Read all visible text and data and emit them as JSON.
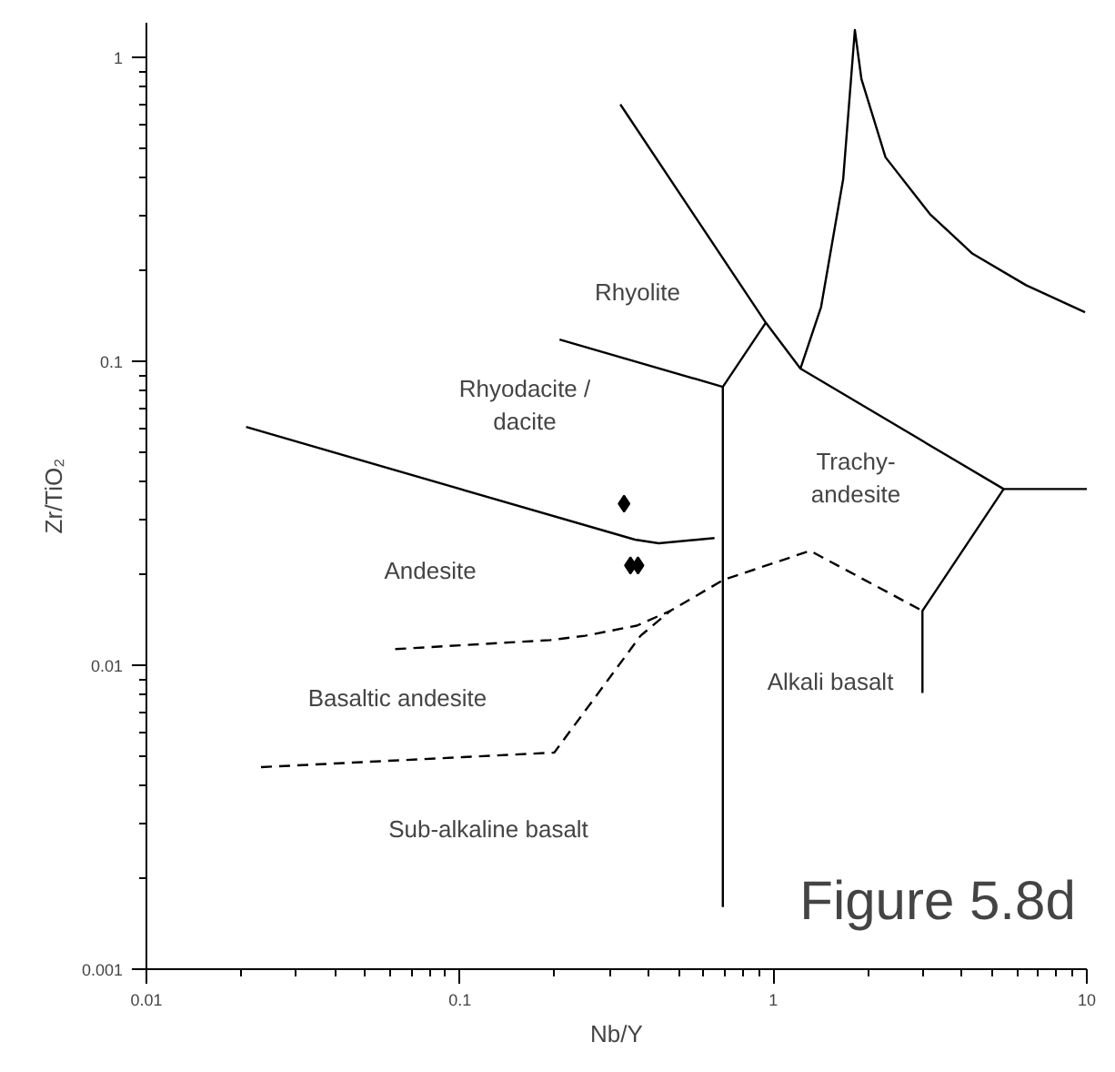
{
  "chart_data": {
    "type": "scatter",
    "xlabel": "Nb/Y",
    "ylabel": "Zr/TiO₂",
    "log": "xy",
    "grid": false,
    "xlim": [
      0.01,
      10
    ],
    "ylim": [
      0.001,
      1.3
    ],
    "xticks": [
      0.01,
      0.1,
      1,
      10
    ],
    "yticks": [
      0.001,
      0.01,
      0.1,
      1
    ],
    "series": [
      {
        "marker": "diamond",
        "color": "#000000",
        "x": [
          0.334,
          0.35,
          0.37
        ],
        "values": [
          0.034,
          0.0213,
          0.0213
        ]
      },
      {
        "type": "line",
        "line_style": "solid",
        "color": "#000000",
        "x": [
          0.325,
          0.946,
          1.22,
          5.43,
          10
        ],
        "values": [
          0.7,
          0.134,
          0.0946,
          0.038,
          0.038
        ]
      },
      {
        "type": "line",
        "line_style": "solid",
        "color": "#000000",
        "x": [
          0.946,
          0.69,
          0.69
        ],
        "values": [
          0.134,
          0.0824,
          0.0016
        ]
      },
      {
        "type": "line",
        "line_style": "solid",
        "color": "#000000",
        "x": [
          0.208,
          0.69
        ],
        "values": [
          0.118,
          0.0824
        ]
      },
      {
        "type": "line",
        "line_style": "solid",
        "color": "#000000",
        "x": [
          0.0208,
          0.362,
          0.431,
          0.649
        ],
        "values": [
          0.0608,
          0.0259,
          0.0252,
          0.0262
        ]
      },
      {
        "type": "line",
        "line_style": "solid",
        "color": "#000000",
        "x": [
          5.43,
          2.99,
          2.99
        ],
        "values": [
          0.038,
          0.0151,
          0.0081
        ]
      },
      {
        "type": "line",
        "line_style": "solid",
        "color": "#000000",
        "x": [
          1.22,
          1.42,
          1.67,
          1.82,
          1.91,
          2.28,
          3.16,
          4.32,
          6.4,
          9.87
        ],
        "values": [
          0.0946,
          0.151,
          0.397,
          1.23,
          0.848,
          0.469,
          0.305,
          0.226,
          0.178,
          0.145
        ]
      },
      {
        "type": "line",
        "line_style": "dashed",
        "color": "#000000",
        "x": [
          0.0622,
          0.194,
          0.251,
          0.367,
          0.469,
          0.694,
          1.31,
          2.99
        ],
        "values": [
          0.0113,
          0.0121,
          0.0125,
          0.0135,
          0.0151,
          0.0191,
          0.0238,
          0.0151
        ]
      },
      {
        "type": "line",
        "line_style": "dashed",
        "color": "#000000",
        "x": [
          0.0232,
          0.2,
          0.251,
          0.377,
          0.469
        ],
        "values": [
          0.00462,
          0.00516,
          0.00708,
          0.0125,
          0.0151
        ]
      }
    ],
    "annotations": [
      "Rhyolite",
      "Rhyodacite /\ndacite",
      "Trachy-\nandesite",
      "Andesite",
      "Basaltic andesite",
      "Alkali basalt",
      "Sub-alkaline basalt",
      "Figure 5.8d"
    ]
  }
}
